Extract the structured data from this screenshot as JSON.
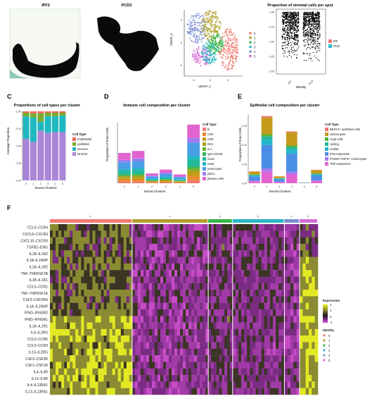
{
  "panel_labels": [
    "C",
    "D",
    "E",
    "F"
  ],
  "panel_a": {
    "titles": [
      "IPF2",
      "PCD2"
    ]
  },
  "panel_b_umap": {
    "xlabel": "UMAP_1",
    "ylabel": "UMAP_2",
    "xticks": [
      "-5",
      "0",
      "5"
    ],
    "yticks": [
      "-5",
      "0",
      "5"
    ],
    "legend": [
      "0",
      "1",
      "2",
      "3",
      "4",
      "5"
    ]
  },
  "colors": {
    "c0": "#f07a6e",
    "c1": "#b3a030",
    "c2": "#3ab54a",
    "c3": "#29b8c6",
    "c4": "#7b8fd4",
    "c5": "#d36bd2",
    "endothelial": "#f06a5e",
    "epithelial": "#7aac2c",
    "immune": "#20b8c0",
    "stromal": "#a986d6",
    "ipf": "#f07a6e",
    "pcd": "#29b8c6"
  },
  "chart_data": [
    {
      "type": "scatter",
      "panel": "B-right",
      "title": "Proportion of stromal cells per spot",
      "xlabel": "Identity",
      "ylabel": "",
      "categories": [
        "IPF",
        "PCD"
      ],
      "yticks": [
        "0.00",
        "0.25",
        "0.50",
        "0.75",
        "1.00"
      ],
      "ylim": [
        0,
        1
      ],
      "legend": [
        "IPF",
        "PCD"
      ]
    },
    {
      "type": "bar",
      "panel": "C",
      "title": "Proportions of cell types per cluster",
      "xlabel": "Seurat Clusters",
      "ylabel": "Average Proportion",
      "categories": [
        "0",
        "1",
        "2",
        "3",
        "4",
        "5"
      ],
      "yticks": [
        "0.00",
        "0.25",
        "0.50",
        "0.75",
        "1.00"
      ],
      "ylim": [
        0,
        1
      ],
      "legend_title": "Cell Type",
      "series": [
        {
          "name": "endothelial",
          "values": [
            0.02,
            0.03,
            0.03,
            0.02,
            0.02,
            0.02
          ]
        },
        {
          "name": "epithelial",
          "values": [
            0.05,
            0.06,
            0.12,
            0.05,
            0.05,
            0.04
          ]
        },
        {
          "name": "immune",
          "values": [
            0.33,
            0.35,
            0.13,
            0.24,
            0.23,
            0.24
          ]
        },
        {
          "name": "stromal",
          "values": [
            0.6,
            0.56,
            0.72,
            0.69,
            0.7,
            0.7
          ]
        }
      ]
    },
    {
      "type": "bar",
      "panel": "D",
      "title": "Immune cell composition per cluster",
      "xlabel": "Seurat Clusters",
      "ylabel": "Proportion of Total Cells",
      "categories": [
        "0",
        "1",
        "2",
        "3",
        "4",
        "5"
      ],
      "legend_title": "Cell Type",
      "legend": [
        "B",
        "CD4",
        "CD8",
        "DCs",
        "ILC",
        "IgG+CD4/8",
        "macs",
        "mast",
        "monocytes",
        "pDCs",
        "plasma cells"
      ],
      "values": [
        0.31,
        0.33,
        0.1,
        0.14,
        0.09,
        0.6
      ]
    },
    {
      "type": "bar",
      "panel": "E",
      "title": "Epithelial cell composition per cluster",
      "xlabel": "Seurat Clusters",
      "ylabel": "Proportion of Total Cells",
      "categories": [
        "0",
        "1",
        "2",
        "3",
        "4",
        "5"
      ],
      "yticks": [
        "0.00",
        "0.05",
        "0.10",
        "0.15"
      ],
      "ylim": [
        0,
        0.18
      ],
      "legend_title": "Cell Type",
      "legend": [
        "BEST4+ epithelial cells",
        "colonocytes",
        "crypt cells",
        "cycling",
        "Goblet",
        "IFN-responsive",
        "IFNGR+TNFR+ colonocytes",
        "TNF-responsive"
      ],
      "values": [
        0.031,
        0.175,
        0.018,
        0.135,
        0.002,
        0.035
      ]
    },
    {
      "type": "heatmap",
      "panel": "F",
      "rows": [
        "CCL5–CCR4",
        "CXCL9–CXCR3",
        "CXCL10–CXCR3",
        "TGFB1–ENG",
        "IL1B–IL1R2",
        "IL1B–IL1RAP",
        "IL1A–IL1R2",
        "TNF–TNFRSF1B",
        "IL1B–IL1R1",
        "CCL5–CCR1",
        "TNF–TNFRSF1A",
        "CSF2–CSF2RA",
        "IL1A–IL1RAP",
        "IFNG–IFNGR2",
        "IFNG–IFNGR1",
        "IL1A–IL1R1",
        "IL4–IL2RG",
        "CCL5–CCR5",
        "CCL5–CCR3",
        "IL13–IL2RG",
        "CSF3–CSF3R",
        "CSF1–CSF1R",
        "IL4–IL4R",
        "IL13–IL4R",
        "IL4–IL13RA1",
        "IL13–IL13RA1"
      ],
      "columns": [
        "0",
        "1",
        "2",
        "3",
        "4",
        "5"
      ],
      "legend_title": "Expression",
      "scale_ticks": [
        "2",
        "1",
        "0",
        "-1"
      ],
      "identity_title": "Identity",
      "identity": [
        "0",
        "1",
        "2",
        "3",
        "4",
        "5"
      ]
    }
  ]
}
